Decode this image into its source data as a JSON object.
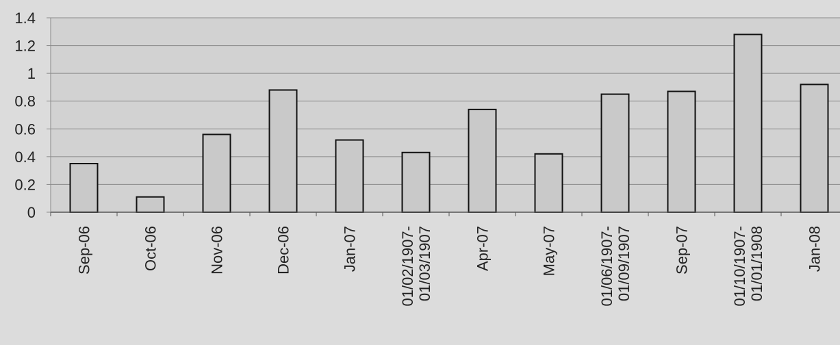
{
  "chart_data": {
    "type": "bar",
    "title": "",
    "xlabel": "",
    "ylabel": "",
    "ylim": [
      0,
      1.4
    ],
    "yticks": [
      "0",
      "0.2",
      "0.4",
      "0.6",
      "0.8",
      "1",
      "1.2",
      "1.4"
    ],
    "grid": true,
    "legend": "none",
    "categories": [
      [
        "Sep-06"
      ],
      [
        "Oct-06"
      ],
      [
        "Nov-06"
      ],
      [
        "Dec-06"
      ],
      [
        "Jan-07"
      ],
      [
        "01/02/1907-",
        "01/03/1907"
      ],
      [
        "Apr-07"
      ],
      [
        "May-07"
      ],
      [
        "01/06/1907-",
        "01/09/1907"
      ],
      [
        "Sep-07"
      ],
      [
        "01/10/1907-",
        "01/01/1908"
      ],
      [
        "Jan-08"
      ]
    ],
    "values": [
      0.35,
      0.11,
      0.56,
      0.88,
      0.52,
      0.43,
      0.74,
      0.42,
      0.85,
      0.87,
      1.28,
      0.92
    ],
    "colors": {
      "background": "#dcdcdc",
      "plot_area": "#d2d2d2",
      "bar_fill": "#c9c9c9",
      "bar_stroke": "#111111",
      "grid": "#8a8a8a",
      "text": "#222222"
    }
  }
}
